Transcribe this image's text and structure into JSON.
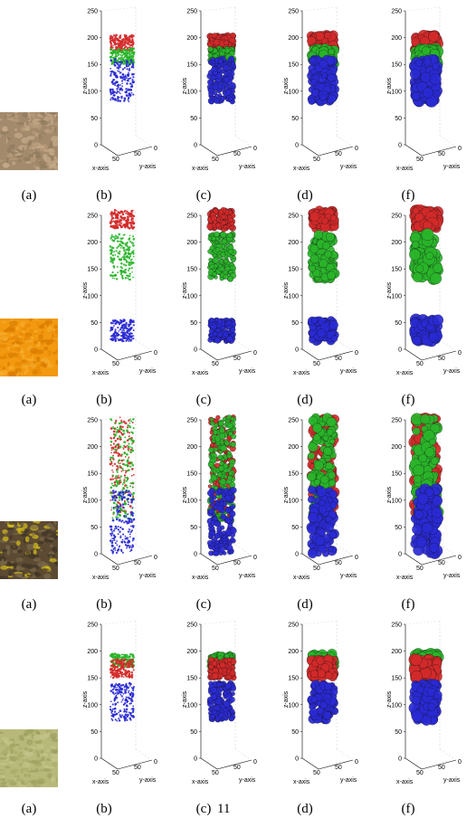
{
  "figure": {
    "rows": [
      {
        "texture": "sandstone",
        "colors": [
          "#a38a6c",
          "#b89b7a",
          "#8f7a60",
          "#c7ad8c"
        ],
        "panels": [
          {
            "caption": "(b)",
            "style": "points"
          },
          {
            "caption": "(c)",
            "style": "spheres"
          },
          {
            "caption": "(d)",
            "style": "blobs"
          },
          {
            "caption": "(f)",
            "style": "blobs-large"
          }
        ],
        "clusters": [
          {
            "color": "#d42a2a",
            "zmin": 175,
            "zmax": 205
          },
          {
            "color": "#2ab52a",
            "zmin": 150,
            "zmax": 180
          },
          {
            "color": "#2a2ad4",
            "zmin": 80,
            "zmax": 160
          }
        ]
      },
      {
        "texture": "orange",
        "colors": [
          "#f2990f",
          "#e88806",
          "#f7ad2e",
          "#d97a00"
        ],
        "panels": [
          {
            "caption": "(b)",
            "style": "points"
          },
          {
            "caption": "(c)",
            "style": "spheres"
          },
          {
            "caption": "(d)",
            "style": "blobs"
          },
          {
            "caption": "(f)",
            "style": "blobs-large"
          }
        ],
        "clusters": [
          {
            "color": "#d42a2a",
            "zmin": 225,
            "zmax": 260
          },
          {
            "color": "#2ab52a",
            "zmin": 130,
            "zmax": 215
          },
          {
            "color": "#2a2ad4",
            "zmin": 15,
            "zmax": 55
          }
        ]
      },
      {
        "texture": "leaves",
        "colors": [
          "#5c4a32",
          "#7a6a4a",
          "#d8c21a",
          "#3f3326"
        ],
        "panels": [
          {
            "caption": "(b)",
            "style": "points"
          },
          {
            "caption": "(c)",
            "style": "spheres"
          },
          {
            "caption": "(d)",
            "style": "blobs"
          },
          {
            "caption": "(f)",
            "style": "blobs-large"
          }
        ],
        "clusters": [
          {
            "color": "#d42a2a",
            "zmin": 70,
            "zmax": 255
          },
          {
            "color": "#2ab52a",
            "zmin": 60,
            "zmax": 255
          },
          {
            "color": "#2a2ad4",
            "zmin": 0,
            "zmax": 120
          }
        ]
      },
      {
        "texture": "moss",
        "colors": [
          "#b7b97a",
          "#a8ab6a",
          "#c3c58a",
          "#9c9f60"
        ],
        "panels": [
          {
            "caption": "(b)",
            "style": "points"
          },
          {
            "caption": "(c)",
            "style": "spheres"
          },
          {
            "caption": "(d)",
            "style": "blobs"
          },
          {
            "caption": "(f)",
            "style": "blobs-large"
          }
        ],
        "clusters": [
          {
            "color": "#2ab52a",
            "zmin": 170,
            "zmax": 195
          },
          {
            "color": "#d42a2a",
            "zmin": 150,
            "zmax": 185
          },
          {
            "color": "#2a2ad4",
            "zmin": 70,
            "zmax": 140
          }
        ]
      }
    ],
    "thumb_caption": "(a)",
    "axis": {
      "z_label": "z-axis",
      "x_label": "x-axis",
      "y_label": "y-axis",
      "z_ticks": [
        "0",
        "50",
        "100",
        "150",
        "200",
        "250"
      ],
      "x_ticks": [
        "50"
      ],
      "y_ticks": [
        "50",
        "0"
      ]
    }
  },
  "page_number": "11"
}
